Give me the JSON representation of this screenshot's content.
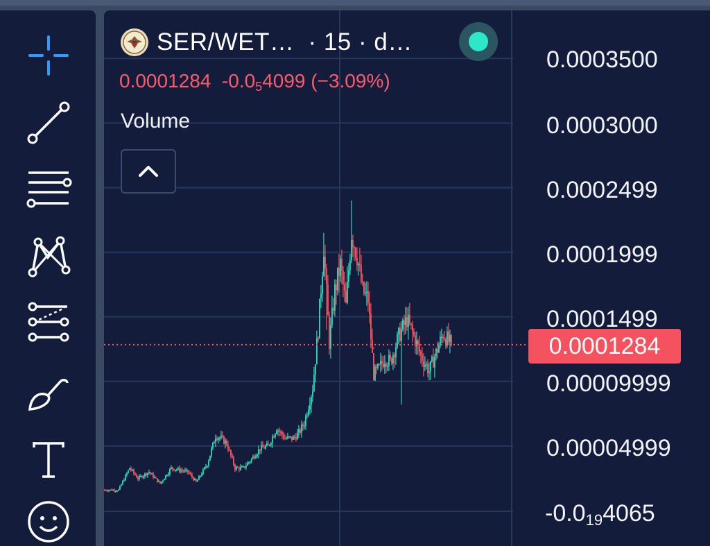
{
  "header": {
    "symbol": "SER/WET…",
    "interval": "· 15 · d…",
    "logo_icon": "eagle-seal-icon",
    "status": "online",
    "status_color": "#2ee6c8"
  },
  "ohlc": {
    "price": "0.0001284",
    "change_lead": "-0.0",
    "change_zeros_sub": "5",
    "change_tail": "4099",
    "change_pct": "(−3.09%)",
    "color": "#ff5a6a"
  },
  "indicator": {
    "label": "Volume",
    "collapse_icon": "chevron-up-icon"
  },
  "price_axis": {
    "labels": [
      "0.0003500",
      "0.0003000",
      "0.0002499",
      "0.0001999",
      "0.0001499",
      "0.00009999",
      "0.00004999"
    ],
    "bottom_label_lead": "-0.0",
    "bottom_label_sub": "19",
    "bottom_label_tail": "4065",
    "current_price": "0.0001284",
    "current_price_color": "#f4525e"
  },
  "toolbar": {
    "tools": [
      {
        "name": "crosshair",
        "icon": "crosshair-icon",
        "active": true
      },
      {
        "name": "trend-line",
        "icon": "trend-line-icon"
      },
      {
        "name": "horizontal-lines",
        "icon": "horizontal-lines-icon"
      },
      {
        "name": "pattern",
        "icon": "pattern-icon"
      },
      {
        "name": "projection",
        "icon": "projection-icon"
      },
      {
        "name": "brush",
        "icon": "brush-icon"
      },
      {
        "name": "text",
        "icon": "text-icon"
      },
      {
        "name": "emoji",
        "icon": "smiley-icon"
      }
    ]
  },
  "colors": {
    "up": "#2ed3b7",
    "down": "#f4525e",
    "background": "#131d3b",
    "grid": "#2a3656",
    "accent": "#2f9bff"
  },
  "chart_data": {
    "type": "candlestick",
    "interval": "15",
    "price_range": [
      0,
      0.00035
    ],
    "current_price": 0.0001284,
    "grid": true,
    "candles": []
  }
}
